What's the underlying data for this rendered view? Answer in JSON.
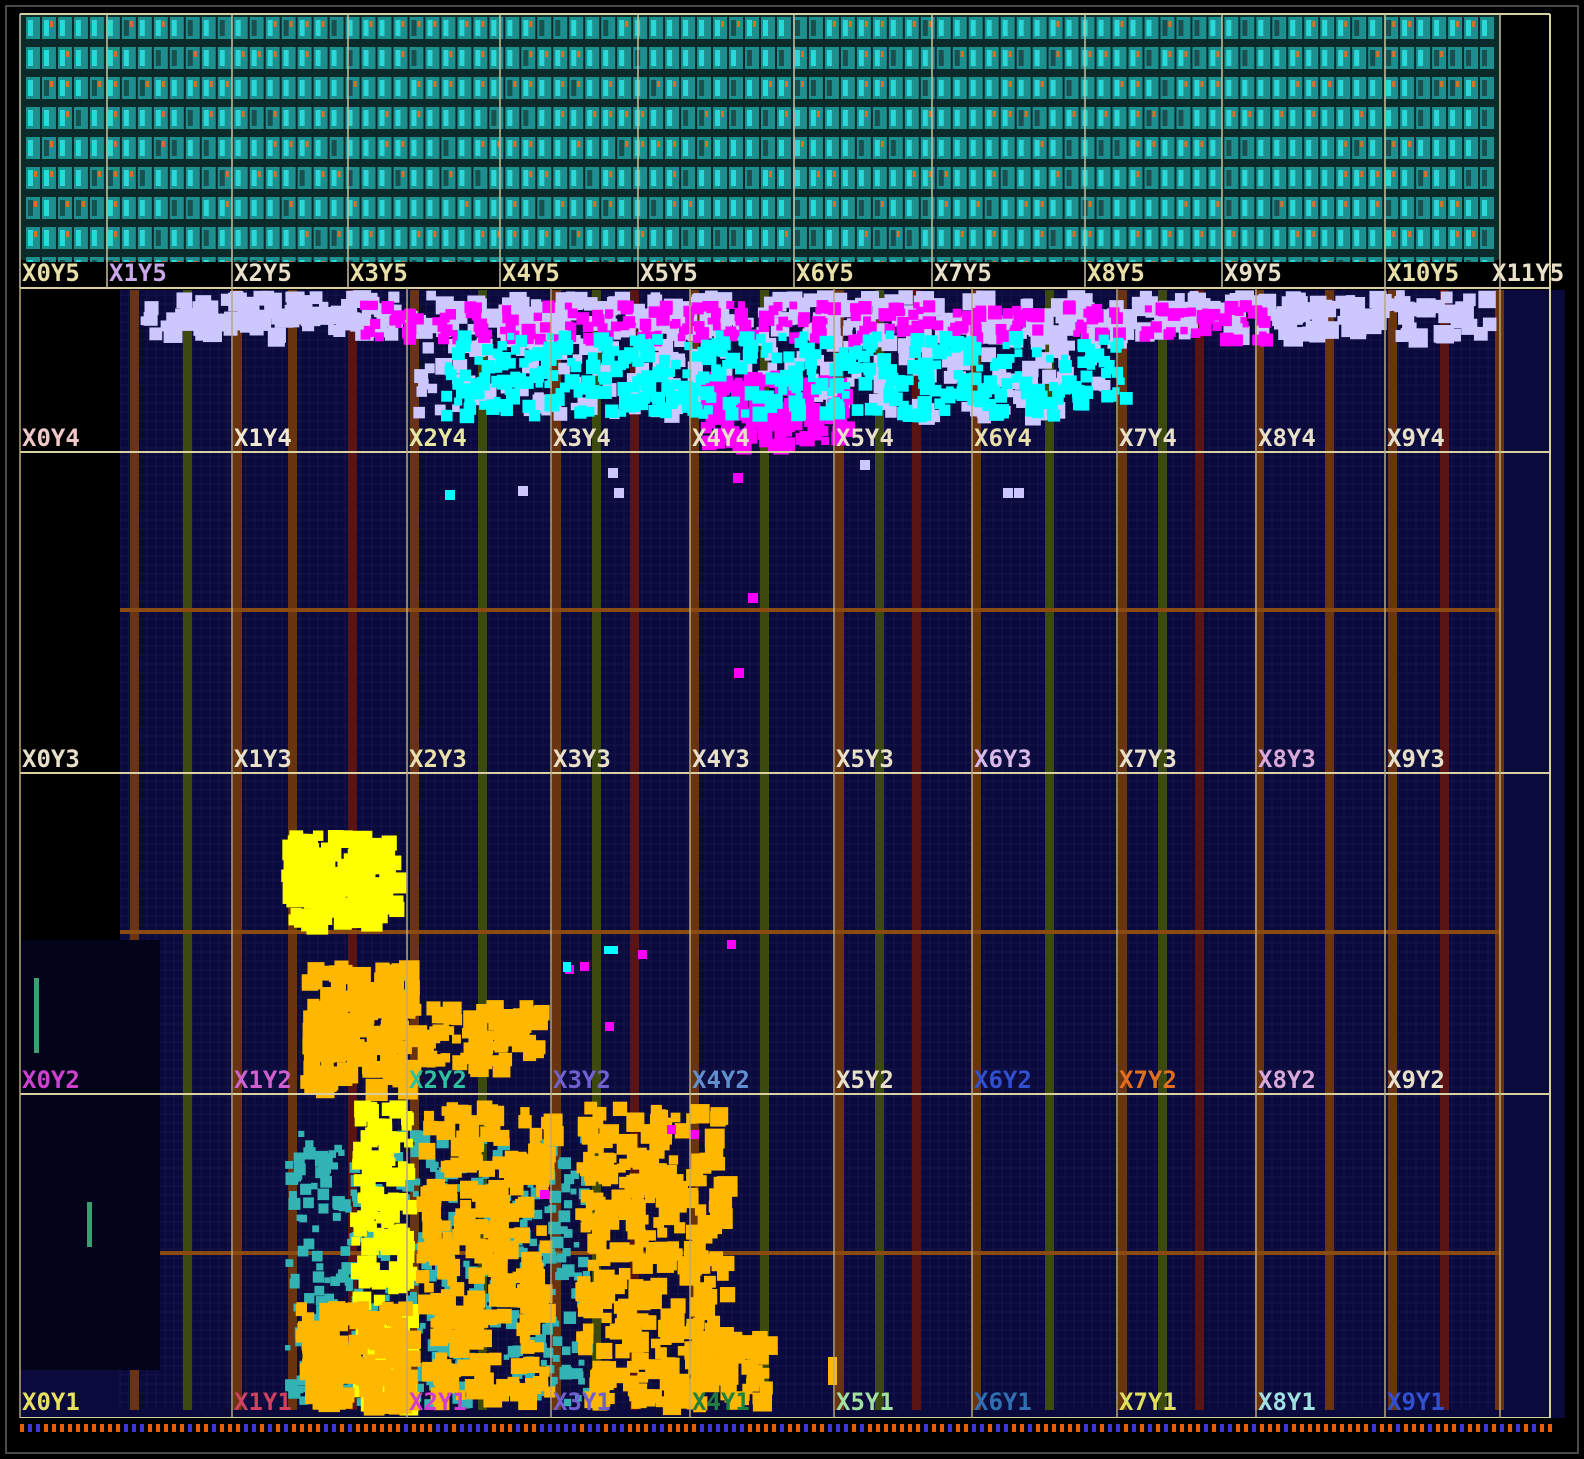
{
  "view": "device",
  "colors": {
    "background": "#000000",
    "fabric": "#0a0a3c",
    "io_bank": "#1e8f8f",
    "cell_cyan": "#00ffff",
    "cell_magenta": "#ff00ff",
    "cell_lavender": "#ccc8ff",
    "cell_yellow": "#ffff00",
    "cell_orange": "#ffb700",
    "cell_teal": "#33b3b3",
    "column_brown": "#6b3410",
    "column_olive": "#3c4a10",
    "column_maroon": "#5a1414",
    "region_line": "#d8d0a0"
  },
  "io_region_labels": [
    {
      "text": "X0Y5",
      "color": "#e8e0a8"
    },
    {
      "text": "X1Y5",
      "color": "#c8a8e8"
    },
    {
      "text": "X2Y5",
      "color": "#e8e0c8"
    },
    {
      "text": "X3Y5",
      "color": "#e8e0a8"
    },
    {
      "text": "X4Y5",
      "color": "#e8e0a8"
    },
    {
      "text": "X5Y5",
      "color": "#e8e0c8"
    },
    {
      "text": "X6Y5",
      "color": "#e8e0a8"
    },
    {
      "text": "X7Y5",
      "color": "#e8e0c8"
    },
    {
      "text": "X8Y5",
      "color": "#e8e0a8"
    },
    {
      "text": "X9Y5",
      "color": "#e8e0c8"
    },
    {
      "text": "X10Y5",
      "color": "#e8e0a8"
    },
    {
      "text": "X11Y5",
      "color": "#e8e0c8"
    }
  ],
  "clock_region_rows": [
    {
      "row": 4,
      "labels": [
        {
          "text": "X0Y4",
          "color": "#f0c8c8"
        },
        {
          "text": "X1Y4",
          "color": "#f0e8d0"
        },
        {
          "text": "X2Y4",
          "color": "#e8e8a0"
        },
        {
          "text": "X3Y4",
          "color": "#e8e0c8"
        },
        {
          "text": "X4Y4",
          "color": "#e8e0c8"
        },
        {
          "text": "X5Y4",
          "color": "#e8e0c8"
        },
        {
          "text": "X6Y4",
          "color": "#e8e0a8"
        },
        {
          "text": "X7Y4",
          "color": "#e8e0c8"
        },
        {
          "text": "X8Y4",
          "color": "#e8e0c8"
        },
        {
          "text": "X9Y4",
          "color": "#e8e0c8"
        }
      ]
    },
    {
      "row": 3,
      "labels": [
        {
          "text": "X0Y3",
          "color": "#e8e0c8"
        },
        {
          "text": "X1Y3",
          "color": "#e8e0c8"
        },
        {
          "text": "X2Y3",
          "color": "#e8e0a8"
        },
        {
          "text": "X3Y3",
          "color": "#e8e0c8"
        },
        {
          "text": "X4Y3",
          "color": "#e8e0c8"
        },
        {
          "text": "X5Y3",
          "color": "#e8e0c8"
        },
        {
          "text": "X6Y3",
          "color": "#d8b8e8"
        },
        {
          "text": "X7Y3",
          "color": "#e8e0c8"
        },
        {
          "text": "X8Y3",
          "color": "#d8a8d8"
        },
        {
          "text": "X9Y3",
          "color": "#e8e0c8"
        }
      ]
    },
    {
      "row": 2,
      "labels": [
        {
          "text": "X0Y2",
          "color": "#d040d0"
        },
        {
          "text": "X1Y2",
          "color": "#d060d0"
        },
        {
          "text": "X2Y2",
          "color": "#30c0a0"
        },
        {
          "text": "X3Y2",
          "color": "#7060d0"
        },
        {
          "text": "X4Y2",
          "color": "#6090d0"
        },
        {
          "text": "X5Y2",
          "color": "#e8e0c8"
        },
        {
          "text": "X6Y2",
          "color": "#3050d0"
        },
        {
          "text": "X7Y2",
          "color": "#e07020"
        },
        {
          "text": "X8Y2",
          "color": "#d8a8d8"
        },
        {
          "text": "X9Y2",
          "color": "#e8e0c8"
        }
      ]
    },
    {
      "row": 1,
      "labels": [
        {
          "text": "X0Y1",
          "color": "#e8e060"
        },
        {
          "text": "X1Y1",
          "color": "#d04060"
        },
        {
          "text": "X2Y1",
          "color": "#d040d0"
        },
        {
          "text": "X3Y1",
          "color": "#7060d0"
        },
        {
          "text": "X4Y1",
          "color": "#208040"
        },
        {
          "text": "X5Y1",
          "color": "#a0e0a0"
        },
        {
          "text": "X6Y1",
          "color": "#3070b0"
        },
        {
          "text": "X7Y1",
          "color": "#e0e060"
        },
        {
          "text": "X8Y1",
          "color": "#a0e0e0"
        },
        {
          "text": "X9Y1",
          "color": "#3050d0"
        }
      ]
    }
  ]
}
